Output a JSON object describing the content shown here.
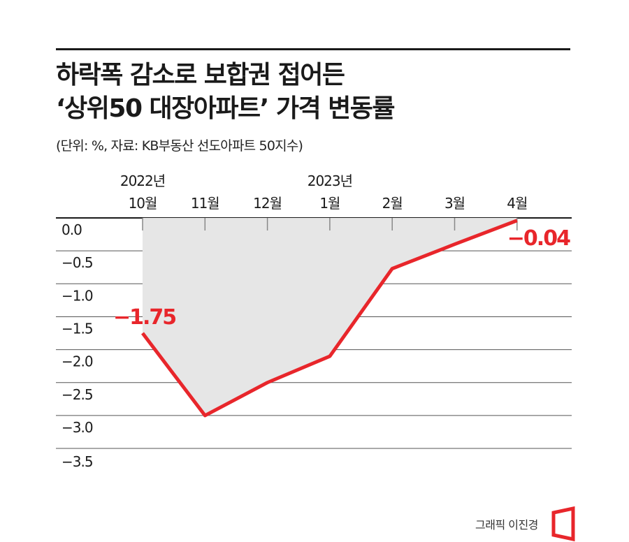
{
  "header": {
    "title_line1": "하락폭 감소로 보합권 접어든",
    "title_line2": "‘상위50 대장아파트’ 가격 변동률",
    "subtitle": "(단위: %, 자료: KB부동산 선도아파트 50지수)"
  },
  "credit": "그래픽 이진경",
  "colors": {
    "line": "#e8262b",
    "area": "#e6e6e6",
    "grid": "#555555",
    "text": "#1a1a1a"
  },
  "chart_data": {
    "type": "line",
    "categories": [
      "10월",
      "11월",
      "12월",
      "1월",
      "2월",
      "3월",
      "4월"
    ],
    "year_labels": [
      {
        "category_index": 0,
        "label": "2022년"
      },
      {
        "category_index": 3,
        "label": "2023년"
      }
    ],
    "series": [
      {
        "values": [
          -1.75,
          -3.0,
          -2.5,
          -2.1,
          -0.77,
          -0.4,
          -0.04
        ]
      }
    ],
    "annotations": [
      {
        "index": 0,
        "label": "−1.75"
      },
      {
        "index": 6,
        "label": "−0.04"
      }
    ],
    "yticks": [
      {
        "value": 0.0,
        "label": "0.0"
      },
      {
        "value": -0.5,
        "label": "−0.5"
      },
      {
        "value": -1.0,
        "label": "−1.0"
      },
      {
        "value": -1.5,
        "label": "−1.5"
      },
      {
        "value": -2.0,
        "label": "−2.0"
      },
      {
        "value": -2.5,
        "label": "−2.5"
      },
      {
        "value": -3.0,
        "label": "−3.0"
      },
      {
        "value": -3.5,
        "label": "−3.5"
      }
    ],
    "ylim": [
      -3.5,
      0.0
    ],
    "grid": true,
    "xaxis_position": "top",
    "fill_between": "line-and-zero"
  }
}
